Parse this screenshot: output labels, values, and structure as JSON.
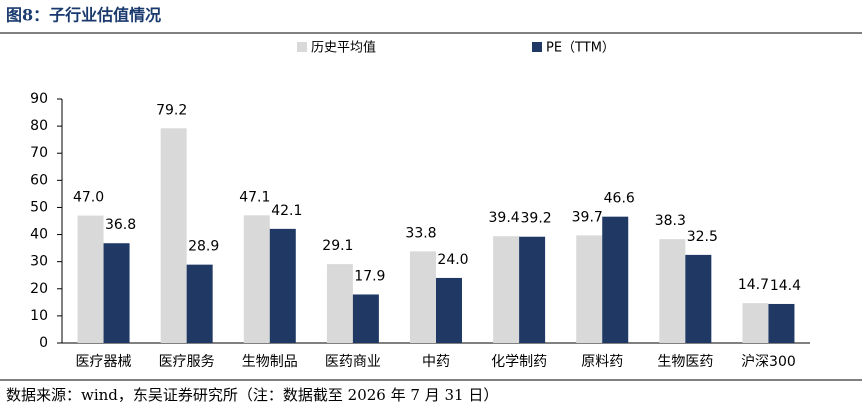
{
  "chart_data": {
    "type": "bar",
    "title": "图8：子行业估值情况",
    "source": "数据来源：wind，东吴证券研究所（注：数据截至 2026 年 7 月 31 日）",
    "categories": [
      "医疗器械",
      "医疗服务",
      "生物制品",
      "医药商业",
      "中药",
      "化学制药",
      "原料药",
      "生物医药",
      "沪深300"
    ],
    "series": [
      {
        "name": "历史平均值",
        "color": "#d9d9d9",
        "values": [
          47.0,
          79.2,
          47.1,
          29.1,
          33.8,
          39.4,
          39.7,
          38.3,
          14.7
        ],
        "value_labels": [
          "47.0",
          "79.2",
          "47.1",
          "29.1",
          "33.8",
          "39.4",
          "39.7",
          "38.3",
          "14.7"
        ]
      },
      {
        "name": "PE（TTM）",
        "color": "#1f3864",
        "values": [
          36.8,
          28.9,
          42.1,
          17.9,
          24.0,
          39.2,
          46.6,
          32.5,
          14.4
        ],
        "value_labels": [
          "36.8",
          "28.9",
          "42.1",
          "17.9",
          "24.0",
          "39.2",
          "46.6",
          "32.5",
          "14.4"
        ]
      }
    ],
    "ylim": [
      0,
      90
    ],
    "yticks": [
      0,
      10,
      20,
      30,
      40,
      50,
      60,
      70,
      80,
      90
    ],
    "grid": false,
    "legend": "top"
  }
}
